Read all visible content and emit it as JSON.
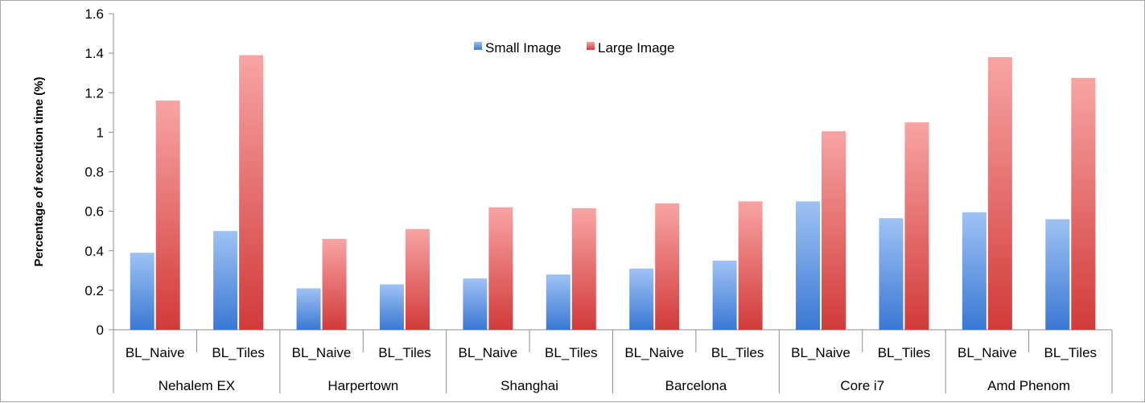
{
  "chart_data": {
    "type": "bar",
    "ylabel": "Percentage of execution time (%)",
    "xlabel": "",
    "ylim": [
      0,
      1.6
    ],
    "yticks": [
      "0",
      "0.2",
      "0.4",
      "0.6",
      "0.8",
      "1",
      "1.2",
      "1.4",
      "1.6"
    ],
    "groups": [
      "Nehalem EX",
      "Harpertown",
      "Shanghai",
      "Barcelona",
      "Core i7",
      "Amd Phenom"
    ],
    "subcategories": [
      "BL_Naive",
      "BL_Tiles"
    ],
    "series": [
      {
        "name": "Small Image",
        "color": "#4a86d8",
        "values": [
          0.39,
          0.5,
          0.21,
          0.23,
          0.26,
          0.28,
          0.31,
          0.35,
          0.65,
          0.565,
          0.595,
          0.56
        ]
      },
      {
        "name": "Large Image",
        "color": "#d84040",
        "values": [
          1.16,
          1.39,
          0.46,
          0.51,
          0.62,
          0.615,
          0.64,
          0.65,
          1.005,
          1.05,
          1.38,
          1.275
        ]
      }
    ],
    "legend_position": "top-center",
    "grid": false
  }
}
